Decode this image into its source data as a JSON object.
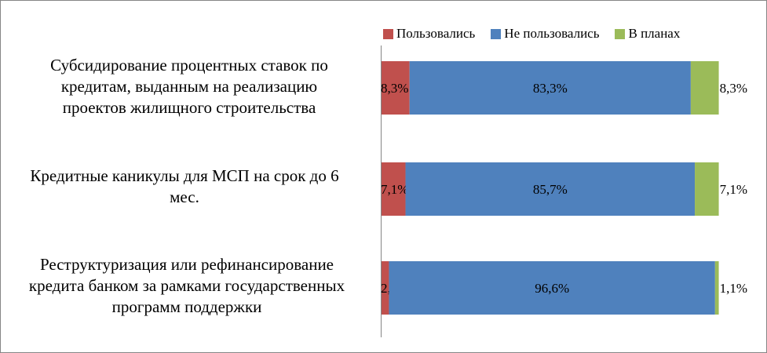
{
  "chart_data": {
    "type": "bar",
    "orientation": "horizontal",
    "stacked": true,
    "categories": [
      "Субсидирование процентных ставок по кредитам, выданным на реализацию проектов жилищного строительства",
      "Кредитные каникулы для МСП на срок до 6 мес.",
      "Реструктуризация или рефинансирование кредита банком за рамками государственных программ поддержки"
    ],
    "category_lines": [
      [
        "Субсидирование процентных ставок по",
        "кредитам, выданным на реализацию",
        "проектов жилищного строительства"
      ],
      [
        "Кредитные каникулы для МСП на срок до 6",
        "мес."
      ],
      [
        "Реструктуризация или рефинансирование",
        "кредита банком за рамками государственных",
        "программ поддержки"
      ]
    ],
    "series": [
      {
        "name": "Пользовались",
        "color": "#c0504d",
        "values": [
          8.3,
          7.1,
          2.2
        ],
        "labels": [
          "8,3%",
          "7,1%",
          "2,2%"
        ]
      },
      {
        "name": "Не пользовались",
        "color": "#4f81bd",
        "values": [
          83.3,
          85.7,
          96.6
        ],
        "labels": [
          "83,3%",
          "85,7%",
          "96,6%"
        ]
      },
      {
        "name": "В планах",
        "color": "#9bbb59",
        "values": [
          8.3,
          7.1,
          1.1
        ],
        "labels": [
          "8,3%",
          "7,1%",
          "1,1%"
        ]
      }
    ],
    "xlim": [
      0,
      100
    ],
    "legend_position": "top",
    "grid": false
  }
}
